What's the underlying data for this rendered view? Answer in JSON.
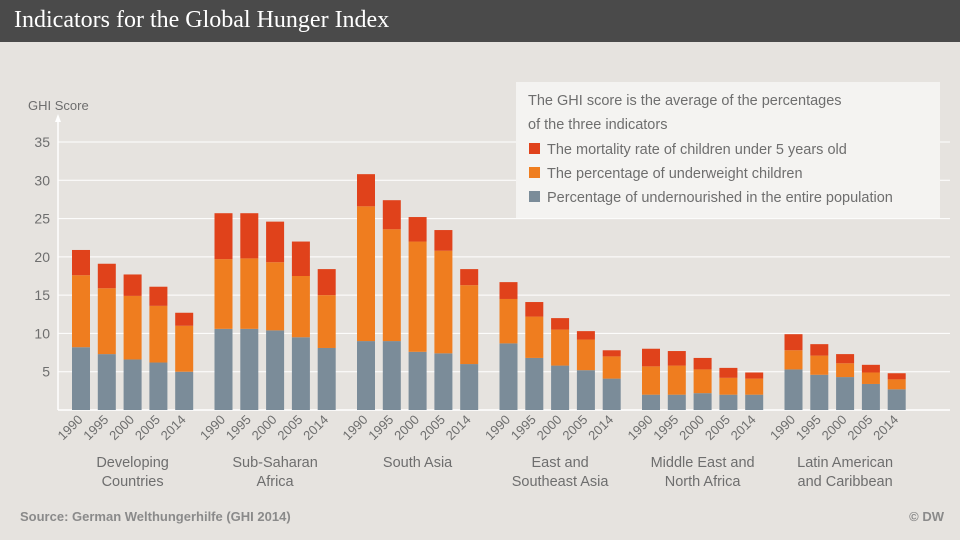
{
  "header": {
    "title": "Indicators for the Global Hunger Index"
  },
  "footer": {
    "source": "Source: German Welthungerhilfe (GHI 2014)",
    "credit": "© DW"
  },
  "colors": {
    "background": "#e6e3df",
    "header_bg": "#4a4a4a",
    "mortality": "#e0421b",
    "underweight": "#ef7d1f",
    "undernourished": "#7b8c99",
    "axis_text": "#6e6e6e"
  },
  "chart_data": {
    "type": "bar",
    "stacked": true,
    "ylabel": "GHI Score",
    "ylim": [
      0,
      35
    ],
    "yticks": [
      5,
      10,
      15,
      20,
      25,
      30,
      35
    ],
    "grid": true,
    "legend": {
      "placement": "top-right",
      "note_lines": [
        "The GHI score is the average of the percentages",
        "of the three indicators"
      ],
      "entries": [
        {
          "key": "mortality",
          "label": "The mortality rate of children under 5 years old"
        },
        {
          "key": "underweight",
          "label": "The percentage of underweight children"
        },
        {
          "key": "undernourished",
          "label": "Percentage of undernourished in the entire population"
        }
      ]
    },
    "years": [
      "1990",
      "1995",
      "2000",
      "2005",
      "2014"
    ],
    "groups": [
      {
        "name_lines": [
          "Developing",
          "Countries"
        ],
        "undernourished": [
          8.2,
          7.3,
          6.6,
          6.2,
          5.0
        ],
        "underweight": [
          9.4,
          8.6,
          8.3,
          7.4,
          6.0
        ],
        "mortality": [
          3.3,
          3.2,
          2.8,
          2.5,
          1.7
        ]
      },
      {
        "name_lines": [
          "Sub-Saharan",
          "Africa"
        ],
        "undernourished": [
          10.6,
          10.6,
          10.4,
          9.5,
          8.1
        ],
        "underweight": [
          9.1,
          9.2,
          8.9,
          8.0,
          6.9
        ],
        "mortality": [
          6.0,
          5.9,
          5.3,
          4.5,
          3.4
        ]
      },
      {
        "name_lines": [
          "South Asia"
        ],
        "undernourished": [
          9.0,
          9.0,
          7.6,
          7.4,
          6.0
        ],
        "underweight": [
          17.6,
          14.6,
          14.4,
          13.4,
          10.3
        ],
        "mortality": [
          4.2,
          3.8,
          3.2,
          2.7,
          2.1
        ]
      },
      {
        "name_lines": [
          "East and",
          "Southeast Asia"
        ],
        "undernourished": [
          8.7,
          6.8,
          5.8,
          5.2,
          4.1
        ],
        "underweight": [
          5.8,
          5.4,
          4.7,
          4.0,
          2.9
        ],
        "mortality": [
          2.2,
          1.9,
          1.5,
          1.1,
          0.8
        ]
      },
      {
        "name_lines": [
          "Middle East and",
          "North Africa"
        ],
        "undernourished": [
          2.0,
          2.0,
          2.2,
          2.0,
          2.0
        ],
        "underweight": [
          3.7,
          3.8,
          3.1,
          2.2,
          2.1
        ],
        "mortality": [
          2.3,
          1.9,
          1.5,
          1.3,
          0.8
        ]
      },
      {
        "name_lines": [
          "Latin American",
          "and Caribbean"
        ],
        "undernourished": [
          5.3,
          4.6,
          4.3,
          3.4,
          2.7
        ],
        "underweight": [
          2.5,
          2.5,
          1.8,
          1.5,
          1.3
        ],
        "mortality": [
          2.1,
          1.5,
          1.2,
          1.0,
          0.8
        ]
      }
    ]
  }
}
